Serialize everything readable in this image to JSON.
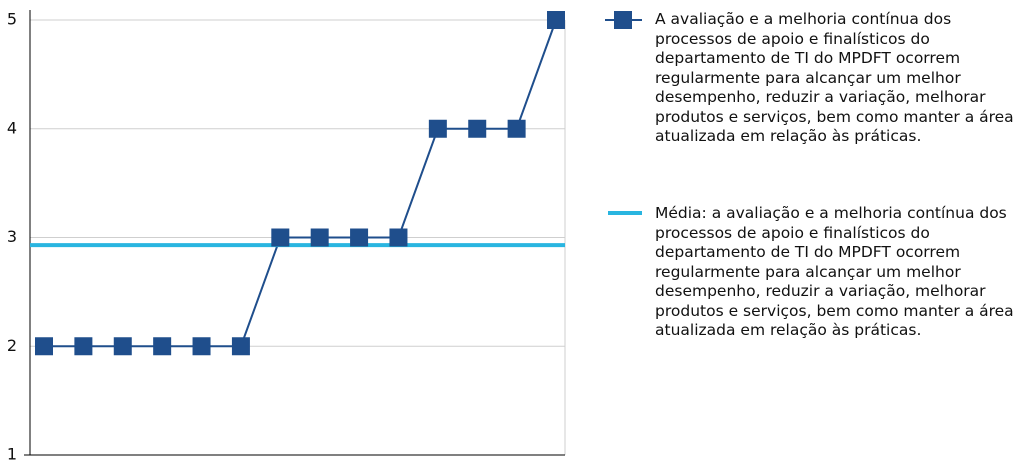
{
  "chart_data": {
    "type": "line",
    "categories": [
      null,
      null,
      null,
      null,
      null,
      null,
      null,
      null,
      null,
      null,
      null,
      null,
      null,
      null
    ],
    "series": [
      {
        "name": "A avaliação e a melhoria contínua dos processos de apoio e finalísticos do departamento de TI do MPDFT ocorrem regularmente para alcançar um melhor desempenho, reduzir a variação, melhorar produtos e serviços, bem como manter a área atualizada em relação às práticas.",
        "color": "#1f4e8c",
        "values": [
          2,
          2,
          2,
          2,
          2,
          2,
          3,
          3,
          3,
          3,
          4,
          4,
          4,
          5
        ]
      },
      {
        "name": "Média: a avaliação e a melhoria contínua dos processos de apoio e finalísticos do departamento de TI do MPDFT ocorrem regularmente para alcançar um melhor desempenho, reduzir a variação, melhorar produtos e serviços, bem como manter a área atualizada em relação às práticas.",
        "color": "#29b5e0",
        "value": 2.93
      }
    ],
    "ylim": [
      1,
      5
    ],
    "yticks": [
      1,
      2,
      3,
      4,
      5
    ],
    "grid": true
  }
}
